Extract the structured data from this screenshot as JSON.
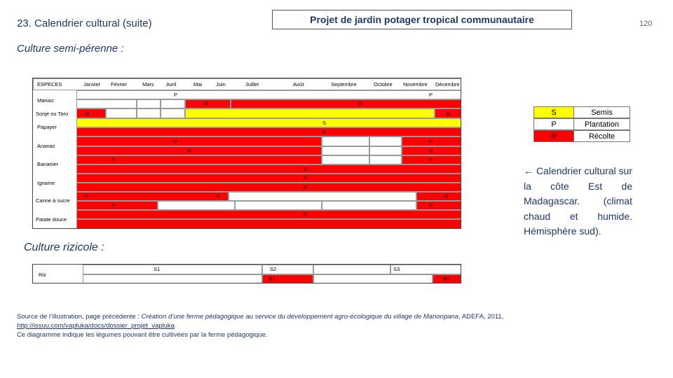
{
  "header": {
    "title": "23. Calendrier cultural (suite)",
    "project_title": "Projet de jardin potager tropical communautaire",
    "page_number": "120"
  },
  "section_perennial": {
    "heading": "Culture semi-pérenne :",
    "columns": [
      "ESPECES",
      "Janvier",
      "Février",
      "Mars",
      "Avril",
      "Mai",
      "Juin",
      "Juillet",
      "Août",
      "Septembre",
      "Octobre",
      "Novembre",
      "Décembre"
    ],
    "species": [
      "Manioc",
      "Sonje ou Taro",
      "Papayer",
      "Ananas",
      "Bananier",
      "Igname",
      "Canne à sucre",
      "Patate douce"
    ],
    "marks": [
      "P",
      "P",
      "R",
      "R",
      "R",
      "R",
      "S",
      "R",
      "P",
      "P",
      "R",
      "R",
      "P",
      "P",
      "R",
      "P",
      "R",
      "P",
      "P",
      "R",
      "R",
      "P",
      "R"
    ]
  },
  "section_rice": {
    "heading": "Culture rizicole :",
    "species": [
      "Riz"
    ],
    "marks": [
      "S1",
      "S2",
      "S3",
      "R1",
      "R2"
    ]
  },
  "legend": [
    {
      "code": "S",
      "label": "Semis",
      "color": "#ffff00"
    },
    {
      "code": "P",
      "label": "Plantation",
      "color": "#ffffff"
    },
    {
      "code": "R",
      "label": "Récolte",
      "color": "#ff0000"
    }
  ],
  "side_note": "← Calendrier cultural sur la côte Est de Madagascar. (climat chaud et humide. Hémisphère sud).",
  "source": {
    "prefix": "Source de l’illustration, page précédente : ",
    "citation": "Création d’une ferme pédagogique au service du développement agro-écologique du village de Manonpana",
    "suffix": ", ADEFA, 2011,",
    "link": "http://issuu.com/vapluka/docs/dossier_projet_vapluka",
    "note": "Ce diagramme indique les légumes pouvant être cultivées par la ferme pédagogique."
  },
  "colors": {
    "sowing": "#ffff00",
    "planting": "#ffffff",
    "harvest": "#ff0000",
    "heading": "#1f3864"
  }
}
